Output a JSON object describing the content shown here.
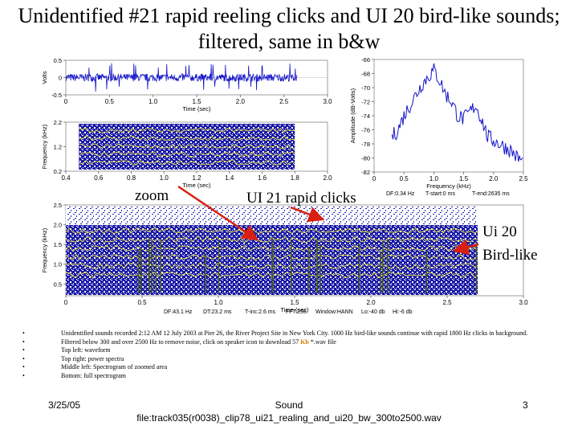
{
  "slide": {
    "title": "Unidentified #21 rapid reeling clicks and UI 20 bird-like sounds; filtered, same in b&w",
    "annotations": {
      "zoom": "zoom",
      "clicks": "UI 21 rapid clicks",
      "bird_line1": "Ui 20",
      "bird_line2": "Bird-like"
    },
    "notes": [
      {
        "text": "Unidentified sounds recorded 2:12 AM 12 July 2003 at Pier 26, the River Project Site in New York City. 1000 Hz bird-like sounds continue with rapid 1800 Hz clicks in background."
      },
      {
        "text_before": "Filtered below 300 and over 2500 Hz to remove noise, click on speaker icon to download 57 ",
        "highlight": "Kb",
        "text_after": " *.wav file"
      },
      {
        "text": "Top left: waveform"
      },
      {
        "text": "Top right: power spectra"
      },
      {
        "text": "Middle left: Spectrogram of zoomed area"
      },
      {
        "text": "Bottom: full spectrogram"
      }
    ],
    "footer": {
      "date": "3/25/05",
      "center_line1": "Sound",
      "center_line2": "file:track035(r0038)_clip78_ui21_realing_and_ui20_bw_300to2500.wav",
      "page": "3"
    }
  },
  "chart_data": [
    {
      "id": "waveform",
      "type": "line",
      "xlabel": "Time (sec)",
      "ylabel": "Volts",
      "xlim": [
        0,
        3.0
      ],
      "ylim": [
        -0.5,
        0.5
      ],
      "xticks": [
        "0",
        "0.5",
        "1.0",
        "1.5",
        "2.0",
        "2.5",
        "3.0"
      ],
      "yticks": [
        "0.5",
        "0",
        "-0.5"
      ],
      "signal_end": 2.65,
      "color": "#1414c8"
    },
    {
      "id": "zoom-spectrogram",
      "type": "heatmap",
      "xlabel": "Time (sec)",
      "ylabel": "Frequency (kHz)",
      "xlim": [
        0.4,
        2.0
      ],
      "ylim": [
        0.2,
        2.2
      ],
      "xticks": [
        "0.4",
        "0.6",
        "0.8",
        "1.0",
        "1.2",
        "1.4",
        "1.6",
        "1.8",
        "2.0"
      ],
      "yticks": [
        "2.2",
        "1.2",
        "0.2"
      ],
      "data_range": [
        0.48,
        1.8
      ]
    },
    {
      "id": "power-spectrum",
      "type": "line",
      "xlabel": "Frequency (kHz)",
      "ylabel": "Amplitude (dB-Volts)",
      "xlim": [
        0,
        2.5
      ],
      "ylim": [
        -82,
        -66
      ],
      "xticks": [
        "0",
        "0.5",
        "1.0",
        "1.5",
        "2.0",
        "2.5"
      ],
      "yticks": [
        "-66",
        "-68",
        "-70",
        "-72",
        "-74",
        "-76",
        "-78",
        "-80",
        "-82"
      ],
      "x": [
        0.3,
        0.4,
        0.5,
        0.6,
        0.7,
        0.8,
        0.9,
        1.0,
        1.1,
        1.2,
        1.3,
        1.4,
        1.5,
        1.6,
        1.7,
        1.8,
        1.9,
        2.0,
        2.1,
        2.2,
        2.3,
        2.4,
        2.5
      ],
      "y": [
        -77,
        -76,
        -74,
        -72.5,
        -71,
        -69.5,
        -68.5,
        -67.5,
        -69,
        -71,
        -72,
        -74,
        -74.5,
        -73.5,
        -72.5,
        -74.5,
        -77,
        -77.5,
        -78,
        -78.5,
        -79,
        -80,
        -80.5
      ],
      "caption": [
        "DF:0.34 Hz",
        "T-start:0 ms",
        "T-end:2635 ms"
      ],
      "color": "#1414c8"
    },
    {
      "id": "full-spectrogram",
      "type": "heatmap",
      "xlabel": "Time (sec)",
      "ylabel": "Frequency (kHz)",
      "xlim": [
        0,
        3.0
      ],
      "ylim": [
        0.2,
        2.5
      ],
      "xticks": [
        "0",
        "0.5",
        "1.0",
        "1.5",
        "2.0",
        "2.5",
        "3.0"
      ],
      "yticks": [
        "2.5",
        "2.0",
        "1.5",
        "1.0",
        "0.5"
      ],
      "data_range": [
        0,
        2.7
      ],
      "caption": [
        "DF:43.1 Hz",
        "DT:23.2 ms",
        "T-inc:2.6 ms",
        "FFT:256",
        "Window:HANN",
        "Lo:-40 db",
        "Hi:-6 db"
      ]
    }
  ]
}
